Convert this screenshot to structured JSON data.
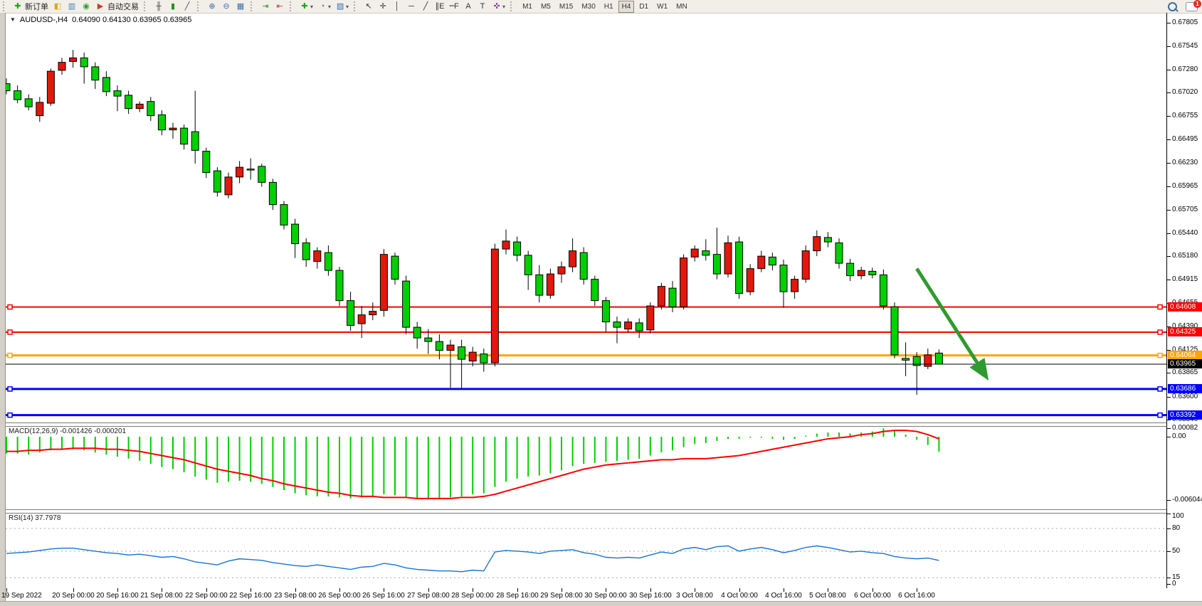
{
  "toolbar": {
    "groups": [
      {
        "name": "standard",
        "items": [
          {
            "name": "new-order-button",
            "glyph": "✚",
            "color": "#1fa51f",
            "label": "新订单"
          },
          {
            "name": "chart-window-icon",
            "glyph": "◧",
            "color": "#d9a820"
          },
          {
            "name": "market-watch-icon",
            "glyph": "▥",
            "color": "#4a7ebb"
          },
          {
            "name": "signals-icon",
            "glyph": "◉",
            "color": "#28a228"
          },
          {
            "name": "autotrading-button",
            "glyph": "▶",
            "color": "#d03a2b",
            "label": "自动交易"
          }
        ]
      },
      {
        "name": "chart-types",
        "items": [
          {
            "name": "bar-chart-icon",
            "glyph": "╫",
            "color": "#444444"
          },
          {
            "name": "candlestick-chart-icon",
            "glyph": "▮",
            "color": "#2c8c2c"
          },
          {
            "name": "line-chart-icon",
            "glyph": "╱",
            "color": "#444444"
          }
        ]
      },
      {
        "name": "zoom",
        "items": [
          {
            "name": "zoom-in-icon",
            "glyph": "⊕",
            "color": "#3a6ea5"
          },
          {
            "name": "zoom-out-icon",
            "glyph": "⊖",
            "color": "#3a6ea5"
          },
          {
            "name": "tile-windows-icon",
            "glyph": "▦",
            "color": "#3a6ea5"
          }
        ]
      },
      {
        "name": "scroll",
        "items": [
          {
            "name": "auto-scroll-icon",
            "glyph": "⇥",
            "color": "#2c8c2c"
          },
          {
            "name": "chart-shift-icon",
            "glyph": "⇤",
            "color": "#c03b2f"
          }
        ]
      },
      {
        "name": "insert",
        "items": [
          {
            "name": "indicators-icon",
            "glyph": "✚",
            "color": "#1fa51f",
            "caret": true
          },
          {
            "name": "periods-icon",
            "glyph": "◔",
            "color": "#3a6ea5",
            "caret": true
          },
          {
            "name": "templates-icon",
            "glyph": "▧",
            "color": "#3a6ea5",
            "caret": true
          }
        ]
      },
      {
        "name": "drawing",
        "items": [
          {
            "name": "cursor-icon",
            "glyph": "↖",
            "color": "#333333"
          },
          {
            "name": "crosshair-icon",
            "glyph": "✛",
            "color": "#333333"
          },
          {
            "name": "vertical-line-icon",
            "glyph": "│",
            "color": "#333333"
          },
          {
            "name": "horizontal-line-icon",
            "glyph": "─",
            "color": "#333333"
          },
          {
            "name": "trendline-icon",
            "glyph": "╱",
            "color": "#333333"
          },
          {
            "name": "equidistant-channel-icon",
            "glyph": "∥E",
            "color": "#333333"
          },
          {
            "name": "fibonacci-icon",
            "glyph": "┉F",
            "color": "#333333"
          },
          {
            "name": "text-icon",
            "glyph": "A",
            "color": "#333333"
          },
          {
            "name": "text-label-icon",
            "glyph": "T",
            "color": "#333333"
          },
          {
            "name": "arrows-icon",
            "glyph": "✜",
            "color": "#8a46a8",
            "caret": true
          }
        ]
      }
    ],
    "timeframes": [
      "M1",
      "M5",
      "M15",
      "M30",
      "H1",
      "H4",
      "D1",
      "W1",
      "MN"
    ],
    "active_timeframe": "H4",
    "chat_badge": "1"
  },
  "chart_window": {
    "title": "AUDUSD-,H4",
    "ohlc": "0.64090 0.64130 0.63965 0.63965"
  },
  "price_axis": {
    "ticks": [
      "0.67805",
      "0.67545",
      "0.67280",
      "0.67020",
      "0.66755",
      "0.66495",
      "0.66230",
      "0.65965",
      "0.65705",
      "0.65440",
      "0.65180",
      "0.64915",
      "0.64655",
      "0.64390",
      "0.64125",
      "0.63865",
      "0.63600",
      "0.63340"
    ]
  },
  "indicators": {
    "macd": {
      "label": "MACD(12,26,9) -0.001426 -0.000201",
      "axis": [
        {
          "text": "0.00082",
          "v": 0.00082
        },
        {
          "text": "0.00",
          "v": 0
        },
        {
          "text": "-0.006044",
          "v": -0.006044
        }
      ]
    },
    "rsi": {
      "label": "RSI(14) 37.7978",
      "axis": [
        {
          "text": "100",
          "v": 100
        },
        {
          "text": "80",
          "v": 80,
          "dashed": true
        },
        {
          "text": "50",
          "v": 50,
          "dashed": true
        },
        {
          "text": "15",
          "v": 15,
          "dashed": true
        },
        {
          "text": "0",
          "v": 0
        }
      ]
    }
  },
  "chart_data": {
    "type": "candlestick",
    "symbol": "AUDUSD-",
    "timeframe": "H4",
    "up_color": "#e3170d",
    "down_color": "#00cf00",
    "outline_color": "#000000",
    "axis_top_price": 0.67805,
    "axis_bottom_price": 0.633,
    "candles": [
      [
        0.6712,
        0.6718,
        0.67,
        0.6704
      ],
      [
        0.6704,
        0.671,
        0.669,
        0.6694
      ],
      [
        0.6695,
        0.67,
        0.6682,
        0.6686
      ],
      [
        0.6676,
        0.6697,
        0.6669,
        0.6691
      ],
      [
        0.669,
        0.6729,
        0.6687,
        0.6726
      ],
      [
        0.6727,
        0.6741,
        0.6722,
        0.6736
      ],
      [
        0.6737,
        0.675,
        0.673,
        0.6741
      ],
      [
        0.6741,
        0.6747,
        0.6712,
        0.6731
      ],
      [
        0.6731,
        0.6736,
        0.6706,
        0.6716
      ],
      [
        0.6719,
        0.6726,
        0.6698,
        0.6703
      ],
      [
        0.6704,
        0.671,
        0.6681,
        0.6698
      ],
      [
        0.6699,
        0.6704,
        0.6678,
        0.6684
      ],
      [
        0.6684,
        0.6692,
        0.668,
        0.6689
      ],
      [
        0.6692,
        0.6697,
        0.667,
        0.6676
      ],
      [
        0.6677,
        0.6682,
        0.6654,
        0.666
      ],
      [
        0.666,
        0.6668,
        0.665,
        0.6662
      ],
      [
        0.6662,
        0.6666,
        0.6638,
        0.6644
      ],
      [
        0.6658,
        0.6704,
        0.6622,
        0.6637
      ],
      [
        0.6636,
        0.664,
        0.6606,
        0.6612
      ],
      [
        0.6614,
        0.6618,
        0.6585,
        0.659
      ],
      [
        0.6587,
        0.6612,
        0.6583,
        0.6607
      ],
      [
        0.6607,
        0.6625,
        0.66,
        0.6618
      ],
      [
        0.6616,
        0.6628,
        0.6604,
        0.6616
      ],
      [
        0.6619,
        0.6622,
        0.6596,
        0.6601
      ],
      [
        0.6601,
        0.6605,
        0.657,
        0.6576
      ],
      [
        0.6576,
        0.658,
        0.6548,
        0.6553
      ],
      [
        0.6554,
        0.656,
        0.6516,
        0.6532
      ],
      [
        0.6533,
        0.6538,
        0.6506,
        0.6514
      ],
      [
        0.6512,
        0.6528,
        0.6504,
        0.6524
      ],
      [
        0.6522,
        0.653,
        0.6496,
        0.6502
      ],
      [
        0.6502,
        0.6506,
        0.6462,
        0.6468
      ],
      [
        0.6468,
        0.6478,
        0.6434,
        0.644
      ],
      [
        0.6442,
        0.6462,
        0.6426,
        0.6452
      ],
      [
        0.6452,
        0.6466,
        0.6446,
        0.6456
      ],
      [
        0.6457,
        0.6526,
        0.645,
        0.652
      ],
      [
        0.6518,
        0.6522,
        0.6486,
        0.6492
      ],
      [
        0.649,
        0.6496,
        0.643,
        0.6438
      ],
      [
        0.6438,
        0.6444,
        0.6414,
        0.6426
      ],
      [
        0.6426,
        0.6436,
        0.6408,
        0.6422
      ],
      [
        0.6422,
        0.643,
        0.6402,
        0.6412
      ],
      [
        0.6412,
        0.6424,
        0.637,
        0.6418
      ],
      [
        0.6416,
        0.6424,
        0.6368,
        0.6402
      ],
      [
        0.64,
        0.6416,
        0.6394,
        0.641
      ],
      [
        0.6408,
        0.6414,
        0.6388,
        0.6398
      ],
      [
        0.6398,
        0.6532,
        0.6394,
        0.6526
      ],
      [
        0.6526,
        0.6548,
        0.652,
        0.6535
      ],
      [
        0.6534,
        0.654,
        0.6512,
        0.6519
      ],
      [
        0.6519,
        0.6524,
        0.648,
        0.6497
      ],
      [
        0.6497,
        0.6508,
        0.6466,
        0.6474
      ],
      [
        0.6474,
        0.6504,
        0.647,
        0.6498
      ],
      [
        0.6498,
        0.6512,
        0.6488,
        0.6506
      ],
      [
        0.6506,
        0.6538,
        0.65,
        0.6524
      ],
      [
        0.6522,
        0.6528,
        0.6486,
        0.6492
      ],
      [
        0.6492,
        0.6496,
        0.6462,
        0.6468
      ],
      [
        0.6468,
        0.6472,
        0.6433,
        0.6444
      ],
      [
        0.6444,
        0.645,
        0.642,
        0.6438
      ],
      [
        0.6436,
        0.6448,
        0.6432,
        0.6444
      ],
      [
        0.6443,
        0.6448,
        0.6426,
        0.6434
      ],
      [
        0.6435,
        0.6466,
        0.6431,
        0.6462
      ],
      [
        0.6462,
        0.6488,
        0.6458,
        0.6484
      ],
      [
        0.6482,
        0.649,
        0.6455,
        0.6461
      ],
      [
        0.6461,
        0.652,
        0.6458,
        0.6516
      ],
      [
        0.6517,
        0.653,
        0.6512,
        0.6526
      ],
      [
        0.6524,
        0.6537,
        0.6513,
        0.6519
      ],
      [
        0.652,
        0.655,
        0.6492,
        0.6498
      ],
      [
        0.6498,
        0.6541,
        0.6494,
        0.6533
      ],
      [
        0.6534,
        0.654,
        0.647,
        0.6476
      ],
      [
        0.6478,
        0.6509,
        0.6474,
        0.6504
      ],
      [
        0.6504,
        0.6524,
        0.65,
        0.6518
      ],
      [
        0.6517,
        0.6522,
        0.6502,
        0.6508
      ],
      [
        0.6508,
        0.6514,
        0.646,
        0.6478
      ],
      [
        0.6478,
        0.6496,
        0.647,
        0.6492
      ],
      [
        0.6492,
        0.653,
        0.6488,
        0.6524
      ],
      [
        0.6524,
        0.6547,
        0.6518,
        0.654
      ],
      [
        0.6539,
        0.6545,
        0.6528,
        0.6534
      ],
      [
        0.6533,
        0.6538,
        0.6504,
        0.651
      ],
      [
        0.651,
        0.6515,
        0.649,
        0.6496
      ],
      [
        0.6496,
        0.6506,
        0.6492,
        0.6502
      ],
      [
        0.6501,
        0.6505,
        0.6493,
        0.6497
      ],
      [
        0.6497,
        0.6503,
        0.6458,
        0.6462
      ],
      [
        0.6461,
        0.6466,
        0.6403,
        0.6407
      ],
      [
        0.6403,
        0.6421,
        0.6383,
        0.6401
      ],
      [
        0.6405,
        0.641,
        0.6362,
        0.6395
      ],
      [
        0.6394,
        0.6414,
        0.6391,
        0.6407
      ],
      [
        0.6409,
        0.6413,
        0.63965,
        0.63965
      ]
    ],
    "levels": [
      {
        "price": 0.64608,
        "label": "0.64608",
        "color": "#ff0000",
        "width": 2
      },
      {
        "price": 0.64325,
        "label": "0.64325",
        "color": "#ff0000",
        "width": 2
      },
      {
        "price": 0.64064,
        "label": "0.64064",
        "color": "#ffa500",
        "width": 3
      },
      {
        "price": 0.63965,
        "label": "0.63965",
        "color": "#000000",
        "width": 1,
        "current": true
      },
      {
        "price": 0.63686,
        "label": "0.63686",
        "color": "#0000ff",
        "width": 3
      },
      {
        "price": 0.63392,
        "label": "0.63392",
        "color": "#0000ff",
        "width": 3
      }
    ],
    "arrow": {
      "from_index": 82,
      "from_price": 0.6504,
      "to_index": 89,
      "to_price": 0.637,
      "color": "#2e9b2e"
    },
    "time_labels": [
      {
        "text": "19 Sep 2022",
        "index": 0
      },
      {
        "text": "20 Sep 00:00",
        "index": 6
      },
      {
        "text": "20 Sep 16:00",
        "index": 10
      },
      {
        "text": "21 Sep 08:00",
        "index": 14
      },
      {
        "text": "22 Sep 00:00",
        "index": 18
      },
      {
        "text": "22 Sep 16:00",
        "index": 22
      },
      {
        "text": "23 Sep 08:00",
        "index": 26
      },
      {
        "text": "26 Sep 00:00",
        "index": 30
      },
      {
        "text": "26 Sep 16:00",
        "index": 34
      },
      {
        "text": "27 Sep 08:00",
        "index": 38
      },
      {
        "text": "28 Sep 00:00",
        "index": 42
      },
      {
        "text": "28 Sep 16:00",
        "index": 46
      },
      {
        "text": "29 Sep 08:00",
        "index": 50
      },
      {
        "text": "30 Sep 00:00",
        "index": 54
      },
      {
        "text": "30 Sep 16:00",
        "index": 58
      },
      {
        "text": "3 Oct 08:00",
        "index": 62
      },
      {
        "text": "4 Oct 00:00",
        "index": 66
      },
      {
        "text": "4 Oct 16:00",
        "index": 70
      },
      {
        "text": "5 Oct 08:00",
        "index": 74
      },
      {
        "text": "6 Oct 00:00",
        "index": 78
      },
      {
        "text": "6 Oct 16:00",
        "index": 82
      }
    ],
    "macd": {
      "hist_color": "#00cf00",
      "signal_color": "#ff0000",
      "histogram": [
        -0.0016,
        -0.0016,
        -0.0017,
        -0.0015,
        -0.0013,
        -0.0012,
        -0.0012,
        -0.0013,
        -0.0015,
        -0.0017,
        -0.0019,
        -0.0021,
        -0.0023,
        -0.0026,
        -0.0029,
        -0.0031,
        -0.0034,
        -0.0038,
        -0.0041,
        -0.0044,
        -0.0043,
        -0.0042,
        -0.0043,
        -0.0045,
        -0.0048,
        -0.0051,
        -0.0054,
        -0.0056,
        -0.0057,
        -0.0057,
        -0.0058,
        -0.0059,
        -0.0058,
        -0.0057,
        -0.0055,
        -0.0056,
        -0.0058,
        -0.0059,
        -0.006,
        -0.0059,
        -0.0058,
        -0.0057,
        -0.0055,
        -0.0054,
        -0.0048,
        -0.0043,
        -0.004,
        -0.0038,
        -0.0037,
        -0.0035,
        -0.0032,
        -0.0028,
        -0.0026,
        -0.0025,
        -0.0024,
        -0.0023,
        -0.0022,
        -0.0021,
        -0.0018,
        -0.0015,
        -0.0013,
        -0.001,
        -0.0007,
        -0.0006,
        -0.0004,
        -0.0002,
        -0.0002,
        -0.0001,
        -0.0001,
        -0.0002,
        -0.0003,
        -0.0002,
        0.0001,
        0.0003,
        0.0004,
        0.0004,
        0.0003,
        0.0004,
        0.0005,
        0.0008,
        0.0006,
        0.0002,
        -0.0003,
        -0.0008,
        -0.001426
      ],
      "signal": [
        -0.0014,
        -0.0014,
        -0.0013,
        -0.0013,
        -0.0012,
        -0.0012,
        -0.0011,
        -0.0011,
        -0.0011,
        -0.0012,
        -0.0012,
        -0.0013,
        -0.0014,
        -0.0016,
        -0.0018,
        -0.002,
        -0.0022,
        -0.0025,
        -0.0028,
        -0.0031,
        -0.0033,
        -0.0035,
        -0.0037,
        -0.004,
        -0.0042,
        -0.0045,
        -0.0047,
        -0.0049,
        -0.0051,
        -0.0053,
        -0.0054,
        -0.0056,
        -0.0057,
        -0.0057,
        -0.0058,
        -0.0058,
        -0.0058,
        -0.0059,
        -0.0059,
        -0.0059,
        -0.0059,
        -0.0058,
        -0.0058,
        -0.0057,
        -0.0055,
        -0.0052,
        -0.0049,
        -0.0046,
        -0.0043,
        -0.004,
        -0.0037,
        -0.0034,
        -0.0031,
        -0.0029,
        -0.0027,
        -0.0026,
        -0.0025,
        -0.0024,
        -0.0023,
        -0.0022,
        -0.0022,
        -0.0021,
        -0.0021,
        -0.0021,
        -0.002,
        -0.0019,
        -0.0018,
        -0.0016,
        -0.0014,
        -0.0012,
        -0.001,
        -0.0008,
        -0.0006,
        -0.0004,
        -0.0002,
        -0.0001,
        0.0,
        0.0002,
        0.0003,
        0.0005,
        0.0006,
        0.0006,
        0.0005,
        0.0002,
        -0.000201
      ]
    },
    "rsi": {
      "color": "#1874cd",
      "levels": [
        80,
        50,
        15
      ],
      "values": [
        47,
        48,
        49,
        51,
        53,
        54,
        54,
        52,
        50,
        48,
        47,
        45,
        46,
        44,
        42,
        43,
        40,
        36,
        34,
        32,
        37,
        40,
        39,
        38,
        35,
        33,
        31,
        30,
        32,
        30,
        28,
        26,
        29,
        30,
        34,
        32,
        28,
        26,
        25,
        24,
        24,
        23,
        25,
        24,
        49,
        51,
        50,
        49,
        47,
        50,
        51,
        52,
        48,
        46,
        42,
        41,
        42,
        41,
        45,
        49,
        47,
        53,
        55,
        52,
        56,
        57,
        50,
        53,
        55,
        52,
        48,
        51,
        55,
        57,
        55,
        52,
        49,
        50,
        48,
        47,
        43,
        41,
        40,
        41,
        37.7978
      ]
    }
  }
}
